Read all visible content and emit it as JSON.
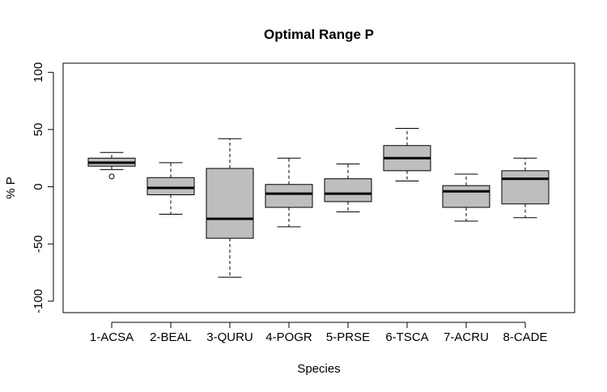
{
  "chart_data": {
    "type": "boxplot",
    "title": "Optimal Range P",
    "xlabel": "Species",
    "ylabel": "% P",
    "ylim": [
      -110,
      108
    ],
    "yticks": [
      -100,
      -50,
      0,
      50,
      100
    ],
    "ytick_labels": [
      "-100",
      "-50",
      "0",
      "50",
      "100"
    ],
    "categories": [
      "1-ACSA",
      "2-BEAL",
      "3-QURU",
      "4-POGR",
      "5-PRSE",
      "6-TSCA",
      "7-ACRU",
      "8-CADE"
    ],
    "boxes": [
      {
        "whisker_low": 15,
        "q1": 18,
        "median": 21,
        "q3": 25,
        "whisker_high": 30,
        "outliers": [
          9
        ]
      },
      {
        "whisker_low": -24,
        "q1": -7,
        "median": -1,
        "q3": 8,
        "whisker_high": 21,
        "outliers": []
      },
      {
        "whisker_low": -79,
        "q1": -45,
        "median": -28,
        "q3": 16,
        "whisker_high": 42,
        "outliers": []
      },
      {
        "whisker_low": -35,
        "q1": -18,
        "median": -6,
        "q3": 2,
        "whisker_high": 25,
        "outliers": []
      },
      {
        "whisker_low": -22,
        "q1": -13,
        "median": -6,
        "q3": 7,
        "whisker_high": 20,
        "outliers": []
      },
      {
        "whisker_low": 5,
        "q1": 14,
        "median": 25,
        "q3": 36,
        "whisker_high": 51,
        "outliers": []
      },
      {
        "whisker_low": -30,
        "q1": -18,
        "median": -4,
        "q3": 1,
        "whisker_high": 11,
        "outliers": []
      },
      {
        "whisker_low": -27,
        "q1": -15,
        "median": 7,
        "q3": 14,
        "whisker_high": 25,
        "outliers": []
      }
    ],
    "box_color": "#bebebe",
    "line_color": "#000000",
    "grid": false
  }
}
